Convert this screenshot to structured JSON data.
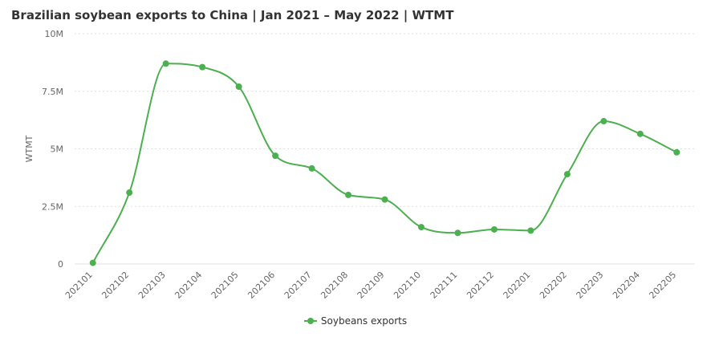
{
  "page": {
    "title": "Brazilian soybean exports to China | Jan 2021 – May 2022 | WTMT"
  },
  "colors": {
    "series": "#4caf50",
    "grid": "#e0e0e0",
    "axis_text": "#666666"
  },
  "chart_data": {
    "type": "line",
    "title": "Brazilian soybean exports to China | Jan 2021 – May 2022 | WTMT",
    "xlabel": "",
    "ylabel": "WTMT",
    "ylim": [
      0,
      10000000
    ],
    "yticks": [
      0,
      2500000,
      5000000,
      7500000,
      10000000
    ],
    "ytick_labels": [
      "0",
      "2.5M",
      "5M",
      "7.5M",
      "10M"
    ],
    "grid": true,
    "smooth": true,
    "legend_position": "bottom",
    "categories": [
      "202101",
      "202102",
      "202103",
      "202104",
      "202105",
      "202106",
      "202107",
      "202108",
      "202109",
      "202110",
      "202111",
      "202112",
      "202201",
      "202202",
      "202203",
      "202204",
      "202205"
    ],
    "series": [
      {
        "name": "Soybeans exports",
        "color": "#4caf50",
        "values": [
          50000,
          3100000,
          8700000,
          8550000,
          7700000,
          4700000,
          4150000,
          3000000,
          2800000,
          1600000,
          1350000,
          1500000,
          1450000,
          3900000,
          6200000,
          5650000,
          4850000
        ]
      }
    ]
  }
}
